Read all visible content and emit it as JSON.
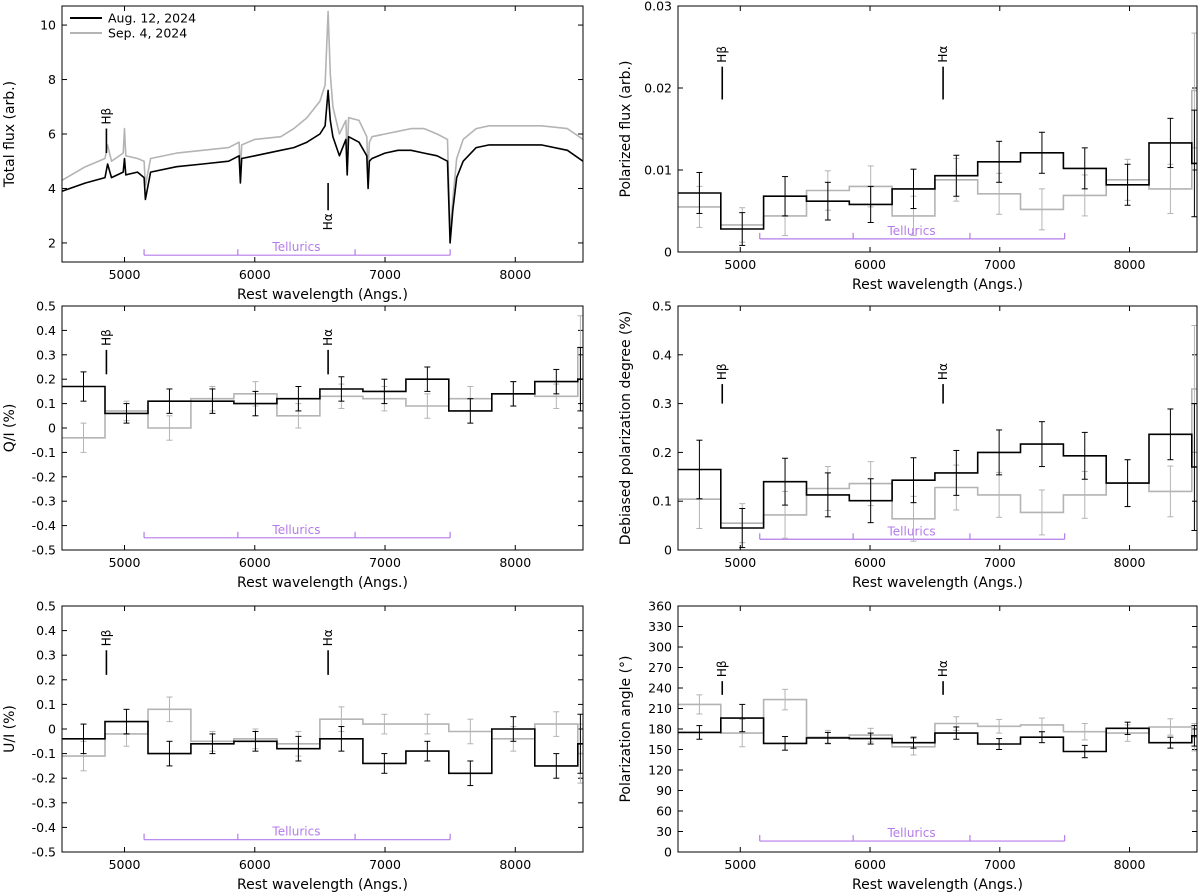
{
  "colors": {
    "aug": "#000000",
    "sep": "#b4b4b4",
    "tellurics": "#b57bea",
    "frame": "#000000"
  },
  "legend": [
    {
      "label": "Aug. 12, 2024",
      "color": "#000000"
    },
    {
      "label": "Sep. 4, 2024",
      "color": "#b4b4b4"
    }
  ],
  "line_markers": {
    "hb": {
      "label": "Hβ",
      "x": 4861
    },
    "ha": {
      "label": "Hα",
      "x": 6563
    }
  },
  "tellurics": {
    "label": "Tellurics",
    "x_start": 5150,
    "x_end": 7500,
    "dividers": [
      5870,
      6770
    ]
  },
  "chart_data": [
    {
      "id": "total-flux",
      "type": "line",
      "title": "",
      "xlabel": "Rest wavelength (Angs.)",
      "ylabel": "Total flux (arb.)",
      "xlim": [
        4520,
        8520
      ],
      "ylim": [
        1.3,
        10.7
      ],
      "xticks": [
        5000,
        6000,
        7000,
        8000
      ],
      "yticks": [
        2,
        4,
        6,
        8,
        10
      ],
      "ytick_labels": [
        "2",
        "4",
        "6",
        "8",
        "10"
      ],
      "legend_position": "top-left",
      "marker_y": {
        "hb": [
          5.3,
          6.2
        ],
        "ha": [
          3.2,
          4.2
        ]
      },
      "marker_label_side": {
        "hb": "above",
        "ha": "below"
      },
      "tellurics_y": 1.55,
      "series": [
        {
          "name": "Aug. 12, 2024",
          "x": [
            4520,
            4700,
            4850,
            4870,
            4900,
            4990,
            5000,
            5010,
            5100,
            5150,
            5160,
            5200,
            5400,
            5600,
            5800,
            5880,
            5890,
            5900,
            6000,
            6200,
            6300,
            6400,
            6500,
            6540,
            6563,
            6580,
            6600,
            6650,
            6700,
            6710,
            6720,
            6800,
            6860,
            6870,
            6880,
            6900,
            7000,
            7100,
            7200,
            7300,
            7400,
            7480,
            7500,
            7520,
            7550,
            7600,
            7700,
            7800,
            8000,
            8200,
            8400,
            8520
          ],
          "y": [
            3.9,
            4.2,
            4.4,
            4.9,
            4.4,
            4.6,
            5.1,
            4.5,
            4.6,
            4.4,
            3.6,
            4.6,
            4.8,
            4.9,
            5.0,
            5.2,
            4.2,
            5.1,
            5.2,
            5.4,
            5.5,
            5.7,
            6.0,
            6.3,
            7.6,
            6.5,
            5.9,
            5.2,
            5.8,
            4.5,
            5.9,
            5.7,
            5.2,
            4.0,
            5.0,
            5.1,
            5.3,
            5.4,
            5.4,
            5.3,
            5.2,
            5.0,
            2.0,
            3.2,
            4.4,
            5.0,
            5.5,
            5.6,
            5.6,
            5.6,
            5.4,
            5.0
          ]
        },
        {
          "name": "Sep. 4, 2024",
          "x": [
            4520,
            4700,
            4850,
            4870,
            4900,
            4990,
            5000,
            5010,
            5100,
            5150,
            5160,
            5200,
            5400,
            5600,
            5800,
            5880,
            5890,
            5900,
            6000,
            6200,
            6300,
            6400,
            6500,
            6540,
            6563,
            6580,
            6600,
            6650,
            6700,
            6710,
            6720,
            6800,
            6860,
            6870,
            6880,
            6900,
            7000,
            7100,
            7200,
            7300,
            7400,
            7480,
            7500,
            7520,
            7550,
            7600,
            7700,
            7800,
            8000,
            8200,
            8400,
            8520
          ],
          "y": [
            4.3,
            4.8,
            5.1,
            5.6,
            5.0,
            5.3,
            6.2,
            5.2,
            5.1,
            5.0,
            4.1,
            5.1,
            5.3,
            5.4,
            5.5,
            5.7,
            4.6,
            5.6,
            5.8,
            5.9,
            6.2,
            6.6,
            7.2,
            7.8,
            10.5,
            8.2,
            7.0,
            6.0,
            6.5,
            5.1,
            6.6,
            6.5,
            5.9,
            4.6,
            5.7,
            5.9,
            6.0,
            6.1,
            6.2,
            6.2,
            6.0,
            5.8,
            2.3,
            3.6,
            5.1,
            5.8,
            6.2,
            6.3,
            6.3,
            6.3,
            6.2,
            5.8
          ]
        }
      ]
    },
    {
      "id": "polarized-flux",
      "type": "step",
      "title": "",
      "xlabel": "Rest wavelength (Angs.)",
      "ylabel": "Polarized flux (arb.)",
      "xlim": [
        4520,
        8520
      ],
      "ylim": [
        0,
        0.03
      ],
      "xticks": [
        5000,
        6000,
        7000,
        8000
      ],
      "yticks": [
        0,
        0.01,
        0.02,
        0.03
      ],
      "ytick_labels": [
        "0",
        "0.01",
        "0.02",
        "0.03"
      ],
      "marker_y": {
        "hb": [
          0.0226,
          0.0186
        ],
        "ha": [
          0.0226,
          0.0186
        ]
      },
      "marker_label_side": {
        "hb": "above",
        "ha": "above"
      },
      "tellurics_y": 0.0016,
      "bin_edges": [
        4520,
        4850,
        5180,
        5510,
        5840,
        6170,
        6500,
        6830,
        7160,
        7490,
        7820,
        8150,
        8480,
        8520
      ],
      "series": [
        {
          "name": "Aug. 12, 2024",
          "values": [
            0.0072,
            0.0028,
            0.0068,
            0.0062,
            0.0058,
            0.0077,
            0.0093,
            0.011,
            0.0121,
            0.0102,
            0.0082,
            0.0133,
            0.0108
          ],
          "errors": [
            0.0025,
            0.002,
            0.0024,
            0.0023,
            0.0022,
            0.0024,
            0.0025,
            0.0025,
            0.0025,
            0.0025,
            0.0025,
            0.003,
            0.0065
          ]
        },
        {
          "name": "Sep. 4, 2024",
          "values": [
            0.0055,
            0.0033,
            0.0044,
            0.0075,
            0.008,
            0.0044,
            0.0088,
            0.0071,
            0.0052,
            0.0069,
            0.0088,
            0.0077,
            0.0197
          ],
          "errors": [
            0.0025,
            0.0021,
            0.0024,
            0.0024,
            0.0025,
            0.0024,
            0.0026,
            0.0025,
            0.0025,
            0.0025,
            0.0025,
            0.003,
            0.007
          ]
        }
      ]
    },
    {
      "id": "q-over-i",
      "type": "step",
      "title": "",
      "xlabel": "Rest wavelength (Angs.)",
      "ylabel": "Q/I (%)",
      "xlim": [
        4520,
        8520
      ],
      "ylim": [
        -0.5,
        0.5
      ],
      "xticks": [
        5000,
        6000,
        7000,
        8000
      ],
      "yticks": [
        -0.5,
        -0.4,
        -0.3,
        -0.2,
        -0.1,
        0,
        0.1,
        0.2,
        0.3,
        0.4,
        0.5
      ],
      "ytick_labels": [
        "-0.5",
        "-0.4",
        "-0.3",
        "-0.2",
        "-0.1",
        "0",
        "0.1",
        "0.2",
        "0.3",
        "0.4",
        "0.5"
      ],
      "marker_y": {
        "hb": [
          0.32,
          0.22
        ],
        "ha": [
          0.32,
          0.22
        ]
      },
      "marker_label_side": {
        "hb": "above",
        "ha": "above"
      },
      "tellurics_y": -0.45,
      "bin_edges": [
        4520,
        4850,
        5180,
        5510,
        5840,
        6170,
        6500,
        6830,
        7160,
        7490,
        7820,
        8150,
        8480,
        8520
      ],
      "series": [
        {
          "name": "Aug. 12, 2024",
          "values": [
            0.17,
            0.06,
            0.11,
            0.11,
            0.1,
            0.12,
            0.16,
            0.15,
            0.2,
            0.07,
            0.14,
            0.19,
            0.2
          ],
          "errors": [
            0.06,
            0.04,
            0.05,
            0.05,
            0.05,
            0.05,
            0.05,
            0.05,
            0.05,
            0.05,
            0.05,
            0.05,
            0.13
          ]
        },
        {
          "name": "Sep. 4, 2024",
          "values": [
            -0.04,
            0.07,
            0.0,
            0.12,
            0.14,
            0.05,
            0.13,
            0.12,
            0.09,
            0.12,
            0.14,
            0.13,
            0.33
          ],
          "errors": [
            0.06,
            0.04,
            0.05,
            0.05,
            0.05,
            0.05,
            0.05,
            0.05,
            0.05,
            0.05,
            0.05,
            0.05,
            0.13
          ]
        }
      ]
    },
    {
      "id": "debiased-polarization",
      "type": "step",
      "title": "",
      "xlabel": "Rest wavelength (Angs.)",
      "ylabel": "Debiased polarization degree (%)",
      "xlim": [
        4520,
        8520
      ],
      "ylim": [
        0,
        0.5
      ],
      "xticks": [
        5000,
        6000,
        7000,
        8000
      ],
      "yticks": [
        0,
        0.1,
        0.2,
        0.3,
        0.4,
        0.5
      ],
      "ytick_labels": [
        "0",
        "0.1",
        "0.2",
        "0.3",
        "0.4",
        "0.5"
      ],
      "marker_y": {
        "hb": [
          0.34,
          0.3
        ],
        "ha": [
          0.34,
          0.3
        ]
      },
      "marker_label_side": {
        "hb": "above",
        "ha": "above"
      },
      "tellurics_y": 0.022,
      "bin_edges": [
        4520,
        4850,
        5180,
        5510,
        5840,
        6170,
        6500,
        6830,
        7160,
        7490,
        7820,
        8150,
        8480,
        8520
      ],
      "series": [
        {
          "name": "Aug. 12, 2024",
          "values": [
            0.165,
            0.045,
            0.14,
            0.113,
            0.101,
            0.143,
            0.158,
            0.2,
            0.217,
            0.193,
            0.137,
            0.237,
            0.17
          ],
          "errors": [
            0.06,
            0.04,
            0.048,
            0.045,
            0.045,
            0.046,
            0.046,
            0.046,
            0.046,
            0.048,
            0.048,
            0.052,
            0.13
          ]
        },
        {
          "name": "Sep. 4, 2024",
          "values": [
            0.104,
            0.055,
            0.072,
            0.126,
            0.136,
            0.064,
            0.128,
            0.113,
            0.077,
            0.113,
            0.137,
            0.12,
            0.33
          ],
          "errors": [
            0.06,
            0.04,
            0.048,
            0.045,
            0.045,
            0.046,
            0.046,
            0.046,
            0.046,
            0.048,
            0.048,
            0.052,
            0.13
          ]
        }
      ]
    },
    {
      "id": "u-over-i",
      "type": "step",
      "title": "",
      "xlabel": "Rest wavelength (Angs.)",
      "ylabel": "U/I (%)",
      "xlim": [
        4520,
        8520
      ],
      "ylim": [
        -0.5,
        0.5
      ],
      "xticks": [
        5000,
        6000,
        7000,
        8000
      ],
      "yticks": [
        -0.5,
        -0.4,
        -0.3,
        -0.2,
        -0.1,
        0,
        0.1,
        0.2,
        0.3,
        0.4,
        0.5
      ],
      "ytick_labels": [
        "-0.5",
        "-0.4",
        "-0.3",
        "-0.2",
        "-0.1",
        "0",
        "0.1",
        "0.2",
        "0.3",
        "0.4",
        "0.5"
      ],
      "marker_y": {
        "hb": [
          0.32,
          0.22
        ],
        "ha": [
          0.32,
          0.22
        ]
      },
      "marker_label_side": {
        "hb": "above",
        "ha": "above"
      },
      "tellurics_y": -0.45,
      "bin_edges": [
        4520,
        4850,
        5180,
        5510,
        5840,
        6170,
        6500,
        6830,
        7160,
        7490,
        7820,
        8150,
        8480,
        8520
      ],
      "series": [
        {
          "name": "Aug. 12, 2024",
          "values": [
            -0.04,
            0.03,
            -0.1,
            -0.06,
            -0.05,
            -0.08,
            -0.04,
            -0.14,
            -0.09,
            -0.18,
            0.0,
            -0.15,
            -0.06
          ],
          "errors": [
            0.06,
            0.05,
            0.05,
            0.04,
            0.04,
            0.05,
            0.05,
            0.04,
            0.04,
            0.05,
            0.05,
            0.05,
            0.12
          ]
        },
        {
          "name": "Sep. 4, 2024",
          "values": [
            -0.11,
            -0.02,
            0.08,
            -0.05,
            -0.04,
            -0.06,
            0.04,
            0.02,
            0.02,
            -0.01,
            -0.04,
            0.02,
            -0.1
          ],
          "errors": [
            0.06,
            0.05,
            0.05,
            0.04,
            0.04,
            0.05,
            0.05,
            0.04,
            0.04,
            0.05,
            0.05,
            0.05,
            0.12
          ]
        }
      ]
    },
    {
      "id": "polarization-angle",
      "type": "step",
      "title": "",
      "xlabel": "Rest wavelength (Angs.)",
      "ylabel": "Polarization angle (°)",
      "xlim": [
        4520,
        8520
      ],
      "ylim": [
        0,
        360
      ],
      "xticks": [
        5000,
        6000,
        7000,
        8000
      ],
      "yticks": [
        0,
        30,
        60,
        90,
        120,
        150,
        180,
        210,
        240,
        270,
        300,
        330,
        360
      ],
      "ytick_labels": [
        "0",
        "30",
        "60",
        "90",
        "120",
        "150",
        "180",
        "210",
        "240",
        "270",
        "300",
        "330",
        "360"
      ],
      "marker_y": {
        "hb": [
          250,
          230
        ],
        "ha": [
          250,
          230
        ]
      },
      "marker_label_side": {
        "hb": "above",
        "ha": "above"
      },
      "tellurics_y": 16,
      "bin_edges": [
        4520,
        4850,
        5180,
        5510,
        5840,
        6170,
        6500,
        6830,
        7160,
        7490,
        7820,
        8150,
        8480,
        8520
      ],
      "series": [
        {
          "name": "Aug. 12, 2024",
          "values": [
            175,
            196,
            159,
            167,
            166,
            160,
            174,
            158,
            168,
            147,
            181,
            160,
            170
          ],
          "errors": [
            10,
            20,
            10,
            8,
            8,
            8,
            9,
            8,
            8,
            9,
            9,
            8,
            15
          ]
        },
        {
          "name": "Sep. 4, 2024",
          "values": [
            216,
            174,
            223,
            168,
            171,
            154,
            188,
            184,
            186,
            176,
            174,
            183,
            168
          ],
          "errors": [
            14,
            20,
            15,
            10,
            10,
            12,
            10,
            10,
            10,
            12,
            12,
            12,
            20
          ]
        }
      ]
    }
  ]
}
